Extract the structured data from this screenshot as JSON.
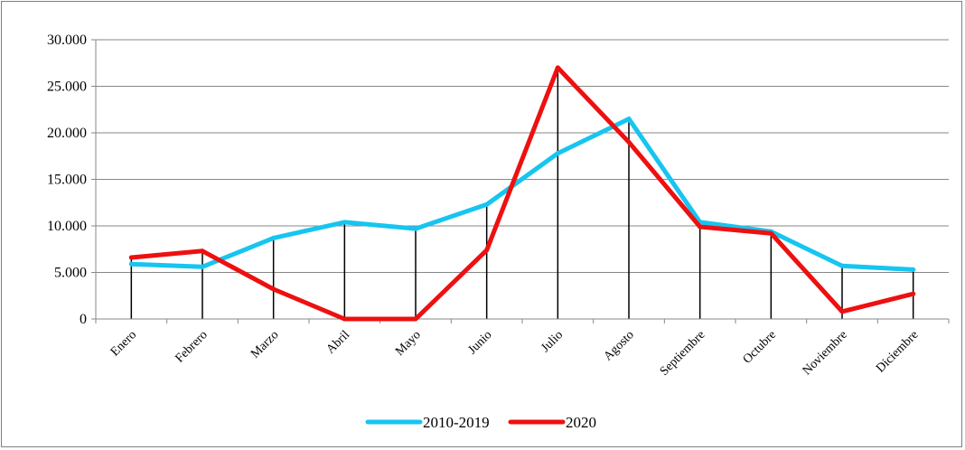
{
  "chart_data": {
    "type": "line",
    "title": "",
    "xlabel": "",
    "ylabel": "",
    "categories": [
      "Enero",
      "Febrero",
      "Marzo",
      "Abril",
      "Mayo",
      "Junio",
      "Julio",
      "Agosto",
      "Septiembre",
      "Octubre",
      "Noviembre",
      "Diciembre"
    ],
    "ylim": [
      0,
      30000
    ],
    "y_ticks": [
      0,
      5000,
      10000,
      15000,
      20000,
      25000,
      30000
    ],
    "y_tick_labels": [
      "0",
      "5.000",
      "10.000",
      "15.000",
      "20.000",
      "25.000",
      "30.000"
    ],
    "grid": "horizontal",
    "drop_lines": true,
    "legend_position": "bottom",
    "series": [
      {
        "name": "2010-2019",
        "color": "#16c5f0",
        "values": [
          5900,
          5600,
          8700,
          10400,
          9700,
          12300,
          17800,
          21500,
          10400,
          9400,
          5700,
          5300
        ]
      },
      {
        "name": "2020",
        "color": "#ee1010",
        "values": [
          6600,
          7300,
          3200,
          0,
          0,
          7400,
          27000,
          19000,
          9900,
          9200,
          800,
          2700
        ]
      }
    ]
  }
}
